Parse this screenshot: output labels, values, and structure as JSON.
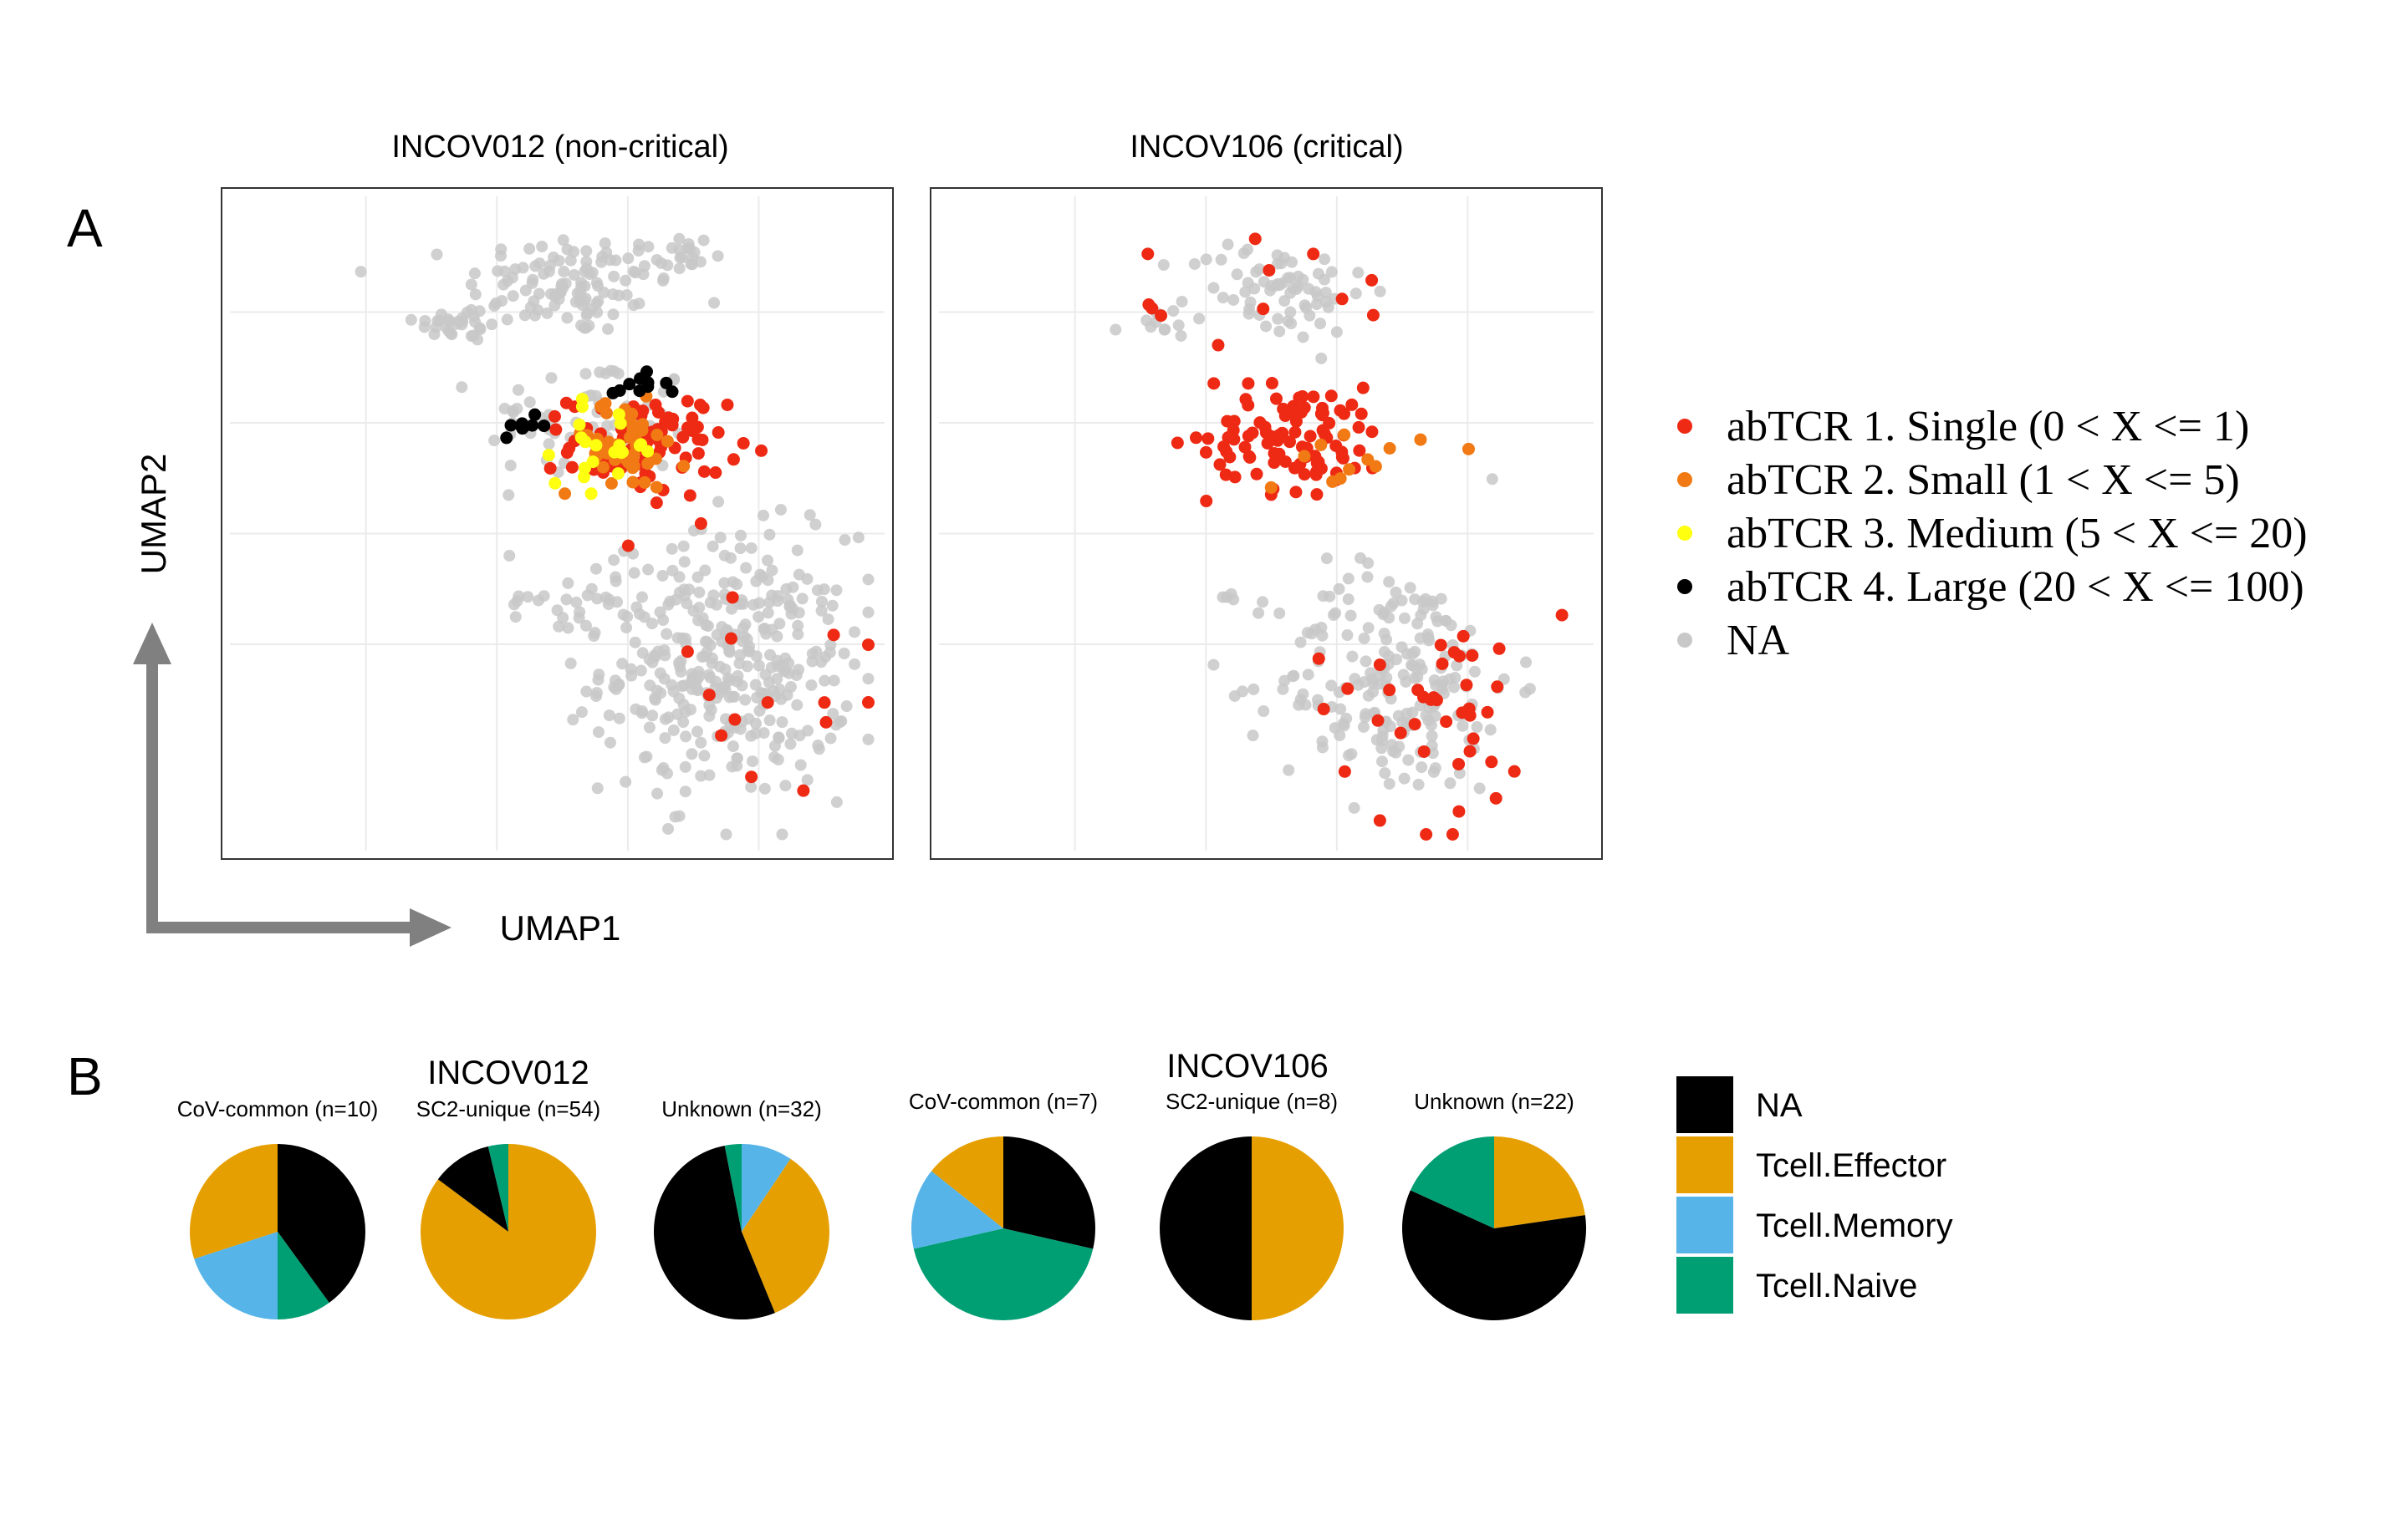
{
  "panel_a": {
    "letter": "A",
    "xlabel": "UMAP1",
    "ylabel": "UMAP2",
    "legend": [
      {
        "label": "abTCR 1. Single (0 < X <= 1)",
        "color": "#ee2a14"
      },
      {
        "label": "abTCR 2. Small (1 < X <= 5)",
        "color": "#f17a14"
      },
      {
        "label": "abTCR 3. Medium (5 < X <= 20)",
        "color": "#ffff10"
      },
      {
        "label": "abTCR 4. Large (20 < X <= 100)",
        "color": "#000000"
      },
      {
        "label": "NA",
        "color": "#c8c8c8"
      }
    ]
  },
  "panel_b": {
    "letter": "B",
    "legend": [
      {
        "label": "NA",
        "color": "#000000"
      },
      {
        "label": "Tcell.Effector",
        "color": "#e69f00"
      },
      {
        "label": "Tcell.Memory",
        "color": "#56b4e9"
      },
      {
        "label": "Tcell.Naive",
        "color": "#009e73"
      }
    ]
  },
  "chart_data": [
    {
      "type": "scatter",
      "title": "INCOV012 (non-critical)",
      "xlabel": "UMAP1",
      "ylabel": "UMAP2",
      "xlim": [
        0,
        1
      ],
      "ylim": [
        0,
        1
      ],
      "grid": true,
      "legend_position": "right",
      "series": [
        {
          "name": "NA",
          "color": "#c8c8c8",
          "clusters": [
            {
              "cx": 0.52,
              "cy": 0.87,
              "sx": 0.08,
              "sy": 0.04,
              "n": 110
            },
            {
              "cx": 0.69,
              "cy": 0.91,
              "sx": 0.025,
              "sy": 0.02,
              "n": 20
            },
            {
              "cx": 0.35,
              "cy": 0.81,
              "sx": 0.035,
              "sy": 0.015,
              "n": 30
            },
            {
              "cx": 0.55,
              "cy": 0.66,
              "sx": 0.08,
              "sy": 0.05,
              "n": 60
            },
            {
              "cx": 0.76,
              "cy": 0.28,
              "sx": 0.095,
              "sy": 0.1,
              "n": 360
            },
            {
              "cx": 0.55,
              "cy": 0.38,
              "sx": 0.05,
              "sy": 0.025,
              "n": 25
            },
            {
              "cx": 0.44,
              "cy": 0.38,
              "sx": 0.01,
              "sy": 0.005,
              "n": 4
            }
          ]
        },
        {
          "name": "abTCR 1. Single (0 < X <= 1)",
          "color": "#ee2a14",
          "clusters": [
            {
              "cx": 0.64,
              "cy": 0.62,
              "sx": 0.06,
              "sy": 0.04,
              "n": 85
            },
            {
              "cx": 0.82,
              "cy": 0.24,
              "sx": 0.12,
              "sy": 0.1,
              "n": 14
            }
          ]
        },
        {
          "name": "abTCR 2. Small (1 < X <= 5)",
          "color": "#f17a14",
          "clusters": [
            {
              "cx": 0.6,
              "cy": 0.62,
              "sx": 0.05,
              "sy": 0.035,
              "n": 45
            }
          ]
        },
        {
          "name": "abTCR 3. Medium (5 < X <= 20)",
          "color": "#ffff10",
          "clusters": [
            {
              "cx": 0.58,
              "cy": 0.62,
              "sx": 0.04,
              "sy": 0.03,
              "n": 22
            }
          ]
        },
        {
          "name": "abTCR 4. Large (20 < X <= 100)",
          "color": "#000000",
          "clusters": [
            {
              "cx": 0.45,
              "cy": 0.65,
              "sx": 0.018,
              "sy": 0.008,
              "n": 9
            },
            {
              "cx": 0.61,
              "cy": 0.71,
              "sx": 0.03,
              "sy": 0.01,
              "n": 10
            }
          ]
        }
      ]
    },
    {
      "type": "scatter",
      "title": "INCOV106 (critical)",
      "xlabel": "UMAP1",
      "ylabel": "UMAP2",
      "xlim": [
        0,
        1
      ],
      "ylim": [
        0,
        1
      ],
      "grid": true,
      "legend_position": "right",
      "series": [
        {
          "name": "NA",
          "color": "#c8c8c8",
          "clusters": [
            {
              "cx": 0.52,
              "cy": 0.86,
              "sx": 0.07,
              "sy": 0.04,
              "n": 70
            },
            {
              "cx": 0.33,
              "cy": 0.81,
              "sx": 0.03,
              "sy": 0.01,
              "n": 12
            },
            {
              "cx": 0.7,
              "cy": 0.26,
              "sx": 0.09,
              "sy": 0.09,
              "n": 210
            },
            {
              "cx": 0.44,
              "cy": 0.39,
              "sx": 0.008,
              "sy": 0.006,
              "n": 4
            }
          ]
        },
        {
          "name": "abTCR 1. Single (0 < X <= 1)",
          "color": "#ee2a14",
          "clusters": [
            {
              "cx": 0.55,
              "cy": 0.63,
              "sx": 0.07,
              "sy": 0.04,
              "n": 95
            },
            {
              "cx": 0.76,
              "cy": 0.22,
              "sx": 0.1,
              "sy": 0.09,
              "n": 40
            },
            {
              "cx": 0.5,
              "cy": 0.84,
              "sx": 0.1,
              "sy": 0.06,
              "n": 14
            }
          ]
        },
        {
          "name": "abTCR 2. Small (1 < X <= 5)",
          "color": "#f17a14",
          "clusters": [
            {
              "cx": 0.62,
              "cy": 0.6,
              "sx": 0.06,
              "sy": 0.035,
              "n": 12
            }
          ]
        },
        {
          "name": "abTCR 3. Medium (5 < X <= 20)",
          "color": "#ffff10",
          "clusters": []
        },
        {
          "name": "abTCR 4. Large (20 < X <= 100)",
          "color": "#000000",
          "clusters": []
        }
      ]
    },
    {
      "type": "pie",
      "group": "INCOV012",
      "title": "CoV-common (n=10)",
      "labels": [
        "NA",
        "Tcell.Naive",
        "Tcell.Memory",
        "Tcell.Effector"
      ],
      "values": [
        40,
        10,
        20,
        30
      ]
    },
    {
      "type": "pie",
      "group": "INCOV012",
      "title": "SC2-unique (n=54)",
      "labels": [
        "Tcell.Effector",
        "NA",
        "Tcell.Naive"
      ],
      "values": [
        85.2,
        11.1,
        3.7
      ]
    },
    {
      "type": "pie",
      "group": "INCOV012",
      "title": "Unknown (n=32)",
      "labels": [
        "Tcell.Memory",
        "Tcell.Effector",
        "NA",
        "Tcell.Naive"
      ],
      "values": [
        9.4,
        34.4,
        53.1,
        3.1
      ]
    },
    {
      "type": "pie",
      "group": "INCOV106",
      "title": "CoV-common (n=7)",
      "labels": [
        "NA",
        "Tcell.Naive",
        "Tcell.Memory",
        "Tcell.Effector"
      ],
      "values": [
        28.6,
        42.9,
        14.3,
        14.3
      ]
    },
    {
      "type": "pie",
      "group": "INCOV106",
      "title": "SC2-unique (n=8)",
      "labels": [
        "Tcell.Effector",
        "NA"
      ],
      "values": [
        50,
        50
      ]
    },
    {
      "type": "pie",
      "group": "INCOV106",
      "title": "Unknown (n=22)",
      "labels": [
        "Tcell.Effector",
        "NA",
        "Tcell.Naive"
      ],
      "values": [
        22.7,
        59.1,
        18.2
      ]
    }
  ],
  "pie_groups": [
    "INCOV012",
    "INCOV106"
  ]
}
